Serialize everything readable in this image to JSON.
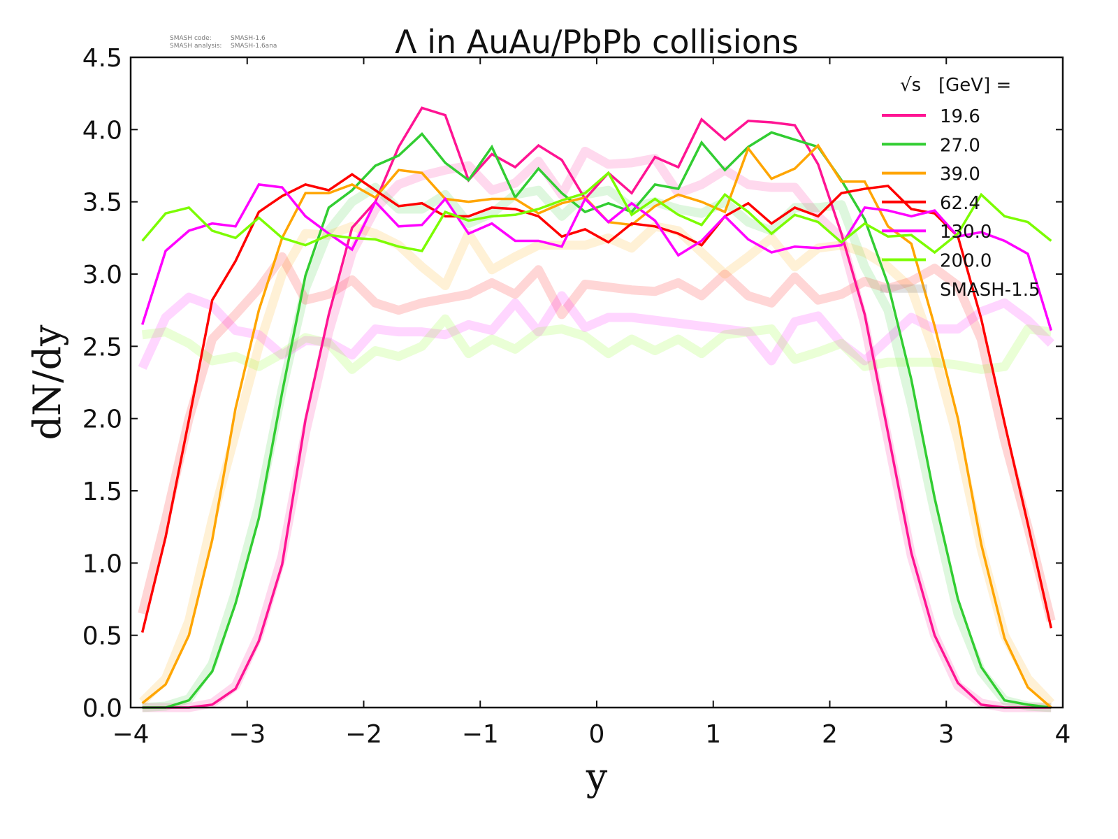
{
  "chart_data": {
    "type": "line",
    "title": "Λ in AuAu/PbPb collisions",
    "xlabel": "y",
    "ylabel": "dN/dy",
    "xlim": [
      -4,
      4
    ],
    "ylim": [
      0,
      4.5
    ],
    "xticks": [
      "−4",
      "−3",
      "−2",
      "−1",
      "0",
      "1",
      "2",
      "3",
      "4"
    ],
    "xtick_values": [
      -4,
      -3,
      -2,
      -1,
      0,
      1,
      2,
      3,
      4
    ],
    "yticks": [
      "0.0",
      "0.5",
      "1.0",
      "1.5",
      "2.0",
      "2.5",
      "3.0",
      "3.5",
      "4.0",
      "4.5"
    ],
    "ytick_values": [
      0,
      0.5,
      1,
      1.5,
      2,
      2.5,
      3,
      3.5,
      4,
      4.5
    ],
    "grid": false,
    "legend": {
      "placement": "top-right",
      "title": "[GeV] =",
      "title_symbol": "√s",
      "reference_label": "SMASH-1.5"
    },
    "annotation": {
      "line1_label": "SMASH code:",
      "line1_value": "SMASH-1.6",
      "line2_label": "SMASH analysis:",
      "line2_value": "SMASH-1.6ana"
    },
    "x": [
      -3.9,
      -3.7,
      -3.5,
      -3.3,
      -3.1,
      -2.9,
      -2.7,
      -2.5,
      -2.3,
      -2.1,
      -1.9,
      -1.7,
      -1.5,
      -1.3,
      -1.1,
      -0.9,
      -0.7,
      -0.5,
      -0.3,
      -0.1,
      0.1,
      0.3,
      0.5,
      0.7,
      0.9,
      1.1,
      1.3,
      1.5,
      1.7,
      1.9,
      2.1,
      2.3,
      2.5,
      2.7,
      2.9,
      3.1,
      3.3,
      3.5,
      3.7,
      3.9
    ],
    "series": [
      {
        "name": "19.6",
        "color": "#ff1493",
        "values": [
          0,
          0,
          0,
          0.02,
          0.13,
          0.46,
          0.99,
          1.99,
          2.72,
          3.32,
          3.5,
          3.88,
          4.15,
          4.1,
          3.65,
          3.83,
          3.74,
          3.89,
          3.79,
          3.52,
          3.7,
          3.56,
          3.81,
          3.74,
          4.07,
          3.93,
          4.06,
          4.05,
          4.03,
          3.76,
          3.28,
          2.72,
          1.9,
          1.07,
          0.5,
          0.17,
          0.02,
          0,
          0,
          0
        ],
        "reference": [
          0.0,
          0.0,
          0.0,
          0.03,
          0.15,
          0.5,
          1.05,
          1.9,
          2.6,
          3.15,
          3.45,
          3.62,
          3.68,
          3.72,
          3.75,
          3.58,
          3.63,
          3.78,
          3.55,
          3.85,
          3.76,
          3.77,
          3.8,
          3.56,
          3.62,
          3.72,
          3.62,
          3.6,
          3.6,
          3.4,
          3.25,
          2.65,
          1.85,
          1.05,
          0.5,
          0.15,
          0.03,
          0,
          0,
          0
        ]
      },
      {
        "name": "27.0",
        "color": "#32cd32",
        "values": [
          0,
          0,
          0.05,
          0.25,
          0.72,
          1.31,
          2.18,
          2.99,
          3.46,
          3.58,
          3.75,
          3.82,
          3.97,
          3.77,
          3.65,
          3.88,
          3.53,
          3.73,
          3.56,
          3.43,
          3.49,
          3.43,
          3.62,
          3.59,
          3.91,
          3.72,
          3.88,
          3.98,
          3.93,
          3.88,
          3.65,
          3.38,
          2.93,
          2.27,
          1.45,
          0.75,
          0.28,
          0.05,
          0.02,
          0
        ],
        "reference": [
          0,
          0.01,
          0.06,
          0.3,
          0.8,
          1.4,
          2.2,
          2.9,
          3.3,
          3.5,
          3.6,
          3.45,
          3.45,
          3.55,
          3.35,
          3.42,
          3.55,
          3.58,
          3.4,
          3.55,
          3.58,
          3.46,
          3.5,
          3.45,
          3.42,
          3.5,
          3.36,
          3.3,
          3.46,
          3.46,
          3.48,
          3.05,
          2.75,
          2.1,
          1.35,
          0.65,
          0.25,
          0.05,
          0.01,
          0
        ]
      },
      {
        "name": "39.0",
        "color": "#ffa500",
        "values": [
          0.03,
          0.16,
          0.5,
          1.16,
          2.07,
          2.75,
          3.25,
          3.56,
          3.56,
          3.62,
          3.53,
          3.72,
          3.7,
          3.52,
          3.5,
          3.52,
          3.52,
          3.42,
          3.49,
          3.53,
          3.36,
          3.34,
          3.47,
          3.55,
          3.5,
          3.43,
          3.87,
          3.66,
          3.73,
          3.89,
          3.64,
          3.64,
          3.33,
          3.21,
          2.64,
          2.0,
          1.13,
          0.48,
          0.14,
          0
        ],
        "reference": [
          0.04,
          0.2,
          0.6,
          1.3,
          1.9,
          2.5,
          3.0,
          3.28,
          3.27,
          3.33,
          3.28,
          3.2,
          3.05,
          2.92,
          3.28,
          3.03,
          3.12,
          3.2,
          3.2,
          3.2,
          3.25,
          3.18,
          3.33,
          3.3,
          3.15,
          3.0,
          3.12,
          3.25,
          3.05,
          3.18,
          3.2,
          3.15,
          3.05,
          2.9,
          2.45,
          1.85,
          1.1,
          0.5,
          0.2,
          0.03
        ]
      },
      {
        "name": "62.4",
        "color": "#ff0000",
        "values": [
          0.52,
          1.18,
          1.99,
          2.82,
          3.09,
          3.43,
          3.54,
          3.62,
          3.58,
          3.69,
          3.58,
          3.47,
          3.49,
          3.4,
          3.4,
          3.46,
          3.45,
          3.4,
          3.26,
          3.31,
          3.22,
          3.35,
          3.33,
          3.28,
          3.2,
          3.4,
          3.49,
          3.35,
          3.46,
          3.4,
          3.56,
          3.59,
          3.61,
          3.45,
          3.42,
          3.26,
          2.69,
          1.97,
          1.27,
          0.55
        ],
        "reference": [
          0.65,
          1.3,
          2.0,
          2.55,
          2.72,
          2.9,
          3.12,
          2.82,
          2.86,
          2.96,
          2.8,
          2.75,
          2.8,
          2.83,
          2.86,
          2.94,
          2.86,
          3.03,
          2.72,
          2.93,
          2.91,
          2.89,
          2.88,
          2.94,
          2.85,
          3.0,
          2.85,
          2.8,
          2.98,
          2.82,
          2.86,
          2.95,
          2.9,
          2.95,
          3.04,
          2.92,
          2.55,
          1.85,
          1.25,
          0.6
        ]
      },
      {
        "name": "130.0",
        "color": "#ff00ff",
        "values": [
          2.65,
          3.16,
          3.3,
          3.35,
          3.33,
          3.62,
          3.6,
          3.4,
          3.28,
          3.17,
          3.5,
          3.33,
          3.34,
          3.52,
          3.28,
          3.35,
          3.23,
          3.23,
          3.19,
          3.52,
          3.36,
          3.49,
          3.37,
          3.13,
          3.23,
          3.4,
          3.24,
          3.15,
          3.19,
          3.18,
          3.2,
          3.46,
          3.44,
          3.4,
          3.44,
          3.26,
          3.29,
          3.23,
          3.14,
          2.61
        ],
        "reference": [
          2.35,
          2.7,
          2.84,
          2.78,
          2.61,
          2.58,
          2.44,
          2.54,
          2.53,
          2.44,
          2.62,
          2.6,
          2.6,
          2.58,
          2.65,
          2.61,
          2.8,
          2.6,
          2.85,
          2.63,
          2.7,
          2.7,
          2.68,
          2.66,
          2.64,
          2.62,
          2.6,
          2.4,
          2.67,
          2.71,
          2.52,
          2.4,
          2.55,
          2.7,
          2.62,
          2.62,
          2.74,
          2.8,
          2.68,
          2.52
        ]
      },
      {
        "name": "200.0",
        "color": "#7cfc00",
        "values": [
          3.23,
          3.42,
          3.46,
          3.3,
          3.25,
          3.39,
          3.25,
          3.2,
          3.27,
          3.25,
          3.24,
          3.19,
          3.16,
          3.43,
          3.37,
          3.4,
          3.41,
          3.45,
          3.51,
          3.56,
          3.7,
          3.41,
          3.52,
          3.41,
          3.34,
          3.55,
          3.43,
          3.28,
          3.41,
          3.36,
          3.22,
          3.35,
          3.26,
          3.27,
          3.15,
          3.28,
          3.55,
          3.4,
          3.36,
          3.23
        ],
        "reference": [
          2.58,
          2.6,
          2.52,
          2.4,
          2.43,
          2.36,
          2.45,
          2.56,
          2.52,
          2.34,
          2.47,
          2.43,
          2.5,
          2.69,
          2.45,
          2.55,
          2.48,
          2.6,
          2.62,
          2.57,
          2.45,
          2.55,
          2.47,
          2.55,
          2.45,
          2.58,
          2.6,
          2.62,
          2.41,
          2.46,
          2.52,
          2.36,
          2.39,
          2.39,
          2.39,
          2.37,
          2.34,
          2.36,
          2.62,
          2.6
        ]
      }
    ]
  }
}
